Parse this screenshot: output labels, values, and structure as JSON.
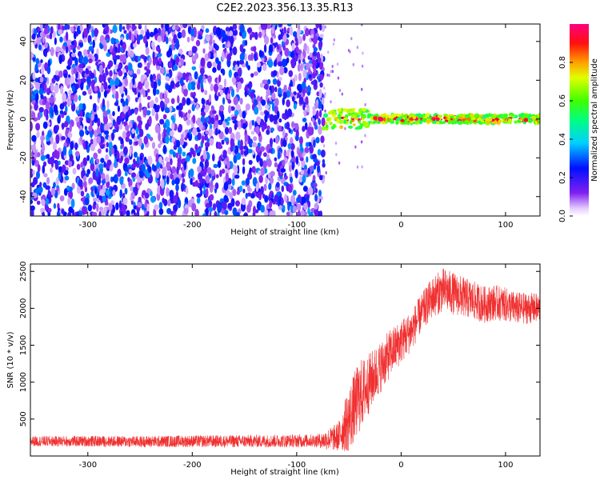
{
  "page_title": "C2E2.2023.356.13.35.R13",
  "chart_data": [
    {
      "type": "heatmap",
      "xlabel": "Height of straight line (km)",
      "ylabel": "Frequency (Hz)",
      "xlim": [
        -355,
        133
      ],
      "ylim": [
        -50,
        49
      ],
      "x_ticks": [
        -300,
        -200,
        -100,
        0,
        100
      ],
      "y_ticks": [
        -40,
        -20,
        0,
        20,
        40
      ],
      "colorbar": {
        "label": "Normalized spectral amplitude",
        "range": [
          0,
          1
        ],
        "ticks": [
          0.0,
          0.2,
          0.4,
          0.6,
          0.8
        ],
        "colormap": "rainbow: white-lavender, violet, blue, cyan, green, yellow, orange, red, magenta"
      },
      "noise_region": {
        "x": [
          -355,
          -74
        ],
        "amplitude": [
          0.05,
          0.35
        ]
      },
      "signal_line": {
        "x": [
          -74,
          133
        ],
        "frequency": 0,
        "amplitude": [
          0.5,
          1.0
        ]
      },
      "sparse_region": {
        "x": [
          -74,
          133
        ],
        "amplitude": [
          0.0,
          0.1
        ]
      }
    },
    {
      "type": "line",
      "xlabel": "Height of straight line (km)",
      "ylabel": "SNR (10 * v/v)",
      "xlim": [
        -355,
        133
      ],
      "ylim": [
        0,
        2600
      ],
      "x_ticks": [
        -300,
        -200,
        -100,
        0,
        100
      ],
      "y_ticks": [
        500,
        1000,
        1500,
        2000,
        2500
      ],
      "color": "#f03030",
      "series": [
        {
          "x": [
            -355,
            -300,
            -250,
            -200,
            -150,
            -100,
            -75,
            -60,
            -50,
            -40,
            -30,
            -20,
            -10,
            0,
            10,
            20,
            30,
            40,
            50,
            60,
            70,
            80,
            90,
            100,
            110,
            120,
            133
          ],
          "values": [
            200,
            200,
            195,
            200,
            200,
            205,
            210,
            260,
            500,
            800,
            1000,
            1200,
            1400,
            1550,
            1700,
            1950,
            2150,
            2250,
            2200,
            2150,
            2100,
            2050,
            2080,
            2050,
            2000,
            2000,
            2000
          ],
          "noise": [
            [
              -355,
              70
            ],
            [
              -80,
              90
            ],
            [
              -60,
              200
            ],
            [
              -50,
              450
            ],
            [
              -40,
              500
            ],
            [
              -30,
              400
            ],
            [
              -20,
              350
            ],
            [
              0,
              300
            ],
            [
              20,
              260
            ],
            [
              40,
              300
            ],
            [
              80,
              250
            ],
            [
              133,
              200
            ]
          ]
        }
      ]
    }
  ]
}
